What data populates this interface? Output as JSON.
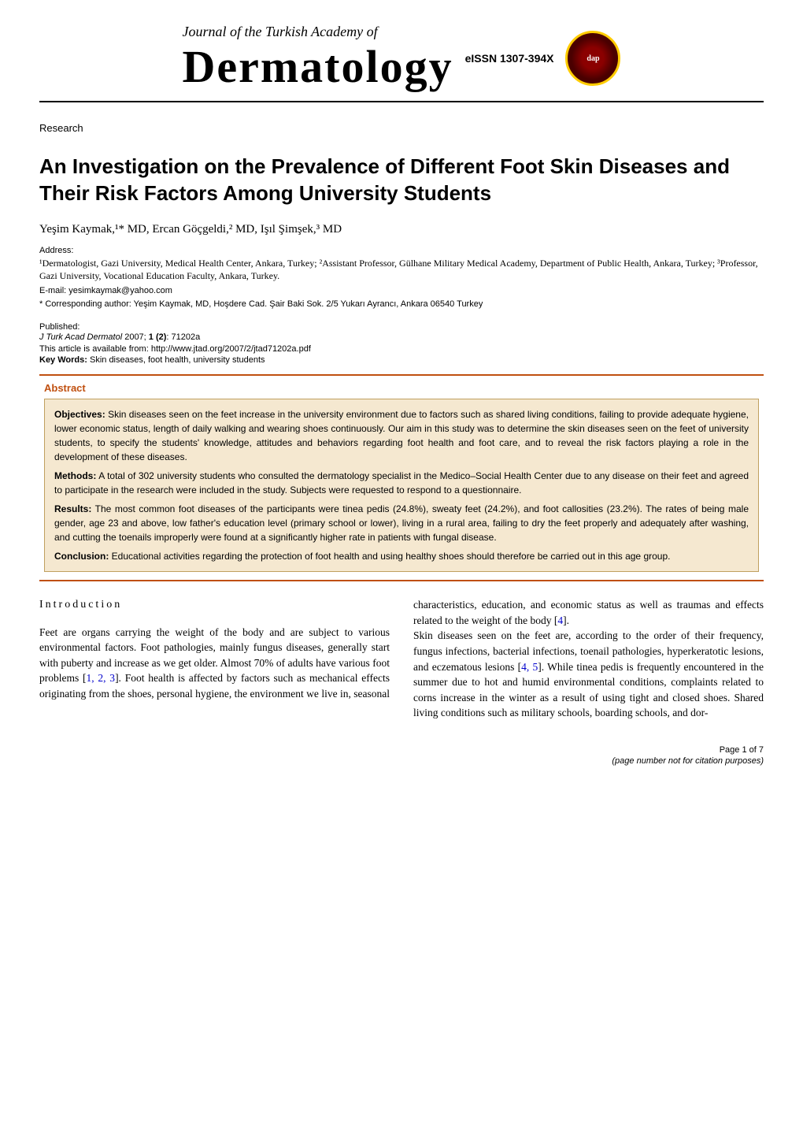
{
  "header": {
    "journal_script": "Journal of the Turkish Academy of",
    "logo_text": "Dermatology",
    "eissn": "eISSN 1307-394X",
    "badge_text": "dap"
  },
  "article_type": "Research",
  "title": "An Investigation on the Prevalence of Different Foot Skin Diseases and Their Risk Factors Among University Students",
  "authors": "Yeşim Kaymak,¹* MD, Ercan Göçgeldi,² MD, Işıl Şimşek,³ MD",
  "address_label": "Address:",
  "affiliations": "¹Dermatologist, Gazi University, Medical Health Center, Ankara, Turkey; ²Assistant Professor, Gülhane Military Medical Academy, Department of Public Health, Ankara, Turkey; ³Professor, Gazi University, Vocational Education Faculty, Ankara, Turkey.",
  "email_label": "E-mail:",
  "email": "yesimkaymak@yahoo.com",
  "corresponding_label": "* Corresponding author:",
  "corresponding": "Yeşim Kaymak, MD, Hoşdere Cad. Şair Baki Sok. 2/5 Yukarı Ayrancı, Ankara 06540 Turkey",
  "published_label": "Published:",
  "citation": {
    "journal": "J Turk Acad Dermatol",
    "year": "2007;",
    "volume": "1 (2)",
    "pages": ": 71202a"
  },
  "article_url_label": "This article is available from:",
  "article_url": "http://www.jtad.org/2007/2/jtad71202a.pdf",
  "keywords_label": "Key Words:",
  "keywords": "Skin diseases, foot health, university students",
  "abstract": {
    "heading": "Abstract",
    "objectives_label": "Objectives:",
    "objectives": "Skin diseases seen on the feet increase in the university environment due to factors such as shared living conditions, failing to provide adequate hygiene, lower economic status, length of daily walking and wearing shoes continuously. Our aim in this study was to determine the skin diseases seen on the feet of university students, to specify the students' knowledge, attitudes and behaviors regarding foot health and foot care, and to reveal the risk factors playing a role in the development of these diseases.",
    "methods_label": "Methods:",
    "methods": "A total of 302 university students who consulted the dermatology specialist in the Medico–Social Health Center due to any disease on their feet and agreed to participate in the research were included in the study. Subjects were requested to respond to a questionnaire.",
    "results_label": "Results:",
    "results": "The most common foot diseases of the participants were tinea pedis (24.8%), sweaty feet (24.2%), and foot callosities (23.2%). The rates of being male gender, age 23 and above, low father's education level (primary school or lower), living in a rural area, failing to dry the feet properly and adequately after washing, and cutting the toenails improperly were found at a significantly higher rate in patients with fungal disease.",
    "conclusion_label": "Conclusion:",
    "conclusion": "Educational activities regarding the protection of foot health and using healthy shoes should therefore be carried out in this age group."
  },
  "body": {
    "intro_heading": "Introduction",
    "para1_a": "Feet are organs carrying the weight of the body and are subject to various environmental factors. Foot pathologies, mainly fungus diseases, generally start with puberty and increase as we get older. Almost 70% of adults have various foot problems [",
    "refs1": "1, 2, 3",
    "para1_b": "]. Foot health is affected by factors such as mechanical effects originating from the shoes, personal hygiene, the environment we live in, seasonal characteristics, education, and economic status as well as",
    "para2_a": "traumas and effects related to the weight of the body [",
    "refs2": "4",
    "para2_b": "].",
    "para3_a": "Skin diseases seen on the feet are, according to the order of their frequency, fungus infections, bacterial infections, toenail pathologies, hyperkeratotic lesions, and eczematous lesions [",
    "refs3": "4, 5",
    "para3_b": "]. While tinea pedis is frequently encountered in the summer due to hot and humid environmental conditions, complaints related to corns increase in the winter as a result of using tight and closed shoes. Shared living conditions such as military schools, boarding schools, and dor-"
  },
  "footer": {
    "page": "Page 1 of 7",
    "note": "(page number not for citation purposes)"
  },
  "colors": {
    "accent": "#c05010",
    "abstract_bg": "#f5e8d0",
    "abstract_border": "#c0a060",
    "link": "#0000cc"
  }
}
